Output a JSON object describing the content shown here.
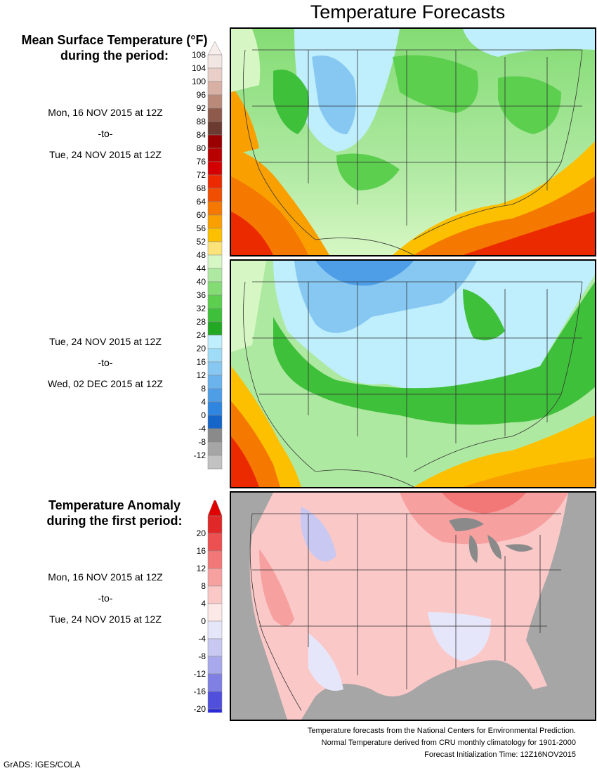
{
  "title": "Temperature Forecasts",
  "mean_section": {
    "heading_line1": "Mean Surface Temperature (°F)",
    "heading_line2": "during the period:",
    "period1": {
      "start": "Mon, 16 NOV 2015 at 12Z",
      "sep": "-to-",
      "end": "Tue, 24 NOV 2015 at 12Z"
    },
    "period2": {
      "start": "Tue, 24 NOV 2015 at 12Z",
      "sep": "-to-",
      "end": "Wed, 02 DEC 2015 at 12Z"
    },
    "colorbar": {
      "ticks": [
        "108",
        "104",
        "100",
        "96",
        "92",
        "88",
        "84",
        "80",
        "76",
        "72",
        "68",
        "64",
        "60",
        "56",
        "52",
        "48",
        "44",
        "40",
        "36",
        "32",
        "28",
        "24",
        "20",
        "16",
        "12",
        "8",
        "4",
        "0",
        "-4",
        "-8",
        "-12"
      ],
      "colors": [
        "#e9cfc8",
        "#d9b0a4",
        "#b98a7a",
        "#8d5a4c",
        "#6b3a30",
        "#9a0000",
        "#b80000",
        "#d40000",
        "#ec2a00",
        "#f04e00",
        "#f57800",
        "#f9a000",
        "#fcc000",
        "#fbe37a",
        "#d6f7c3",
        "#aee9a1",
        "#84dc74",
        "#5ccf4f",
        "#3fc03a",
        "#23a823",
        "#bfeefc",
        "#9fdcf7",
        "#86c8f2",
        "#6ab3ec",
        "#4e9de7",
        "#2f86e0",
        "#1566c8",
        "#8a8a8a",
        "#a6a6a6",
        "#c2c2c2",
        "#dddddd"
      ]
    }
  },
  "anomaly_section": {
    "heading_line1": "Temperature Anomaly",
    "heading_line2": "during the first period:",
    "period": {
      "start": "Mon, 16 NOV 2015 at 12Z",
      "sep": "-to-",
      "end": "Tue, 24 NOV 2015 at 12Z"
    },
    "colorbar": {
      "ticks": [
        "20",
        "16",
        "12",
        "8",
        "4",
        "0",
        "-4",
        "-8",
        "-12",
        "-16",
        "-20"
      ],
      "colors": [
        "#e02828",
        "#ec5050",
        "#f27878",
        "#f7a0a0",
        "#fbc8c8",
        "#fde8e8",
        "#e6e6fa",
        "#c8c8f2",
        "#a8a8ec",
        "#8080e4",
        "#5050dc",
        "#2a2ad8"
      ]
    }
  },
  "maps": {
    "panel1_name": "forecast-week1-map",
    "panel2_name": "forecast-week2-map",
    "panel3_name": "anomaly-map"
  },
  "footer": {
    "line1": "Temperature forecasts from the National Centers for Environmental Prediction.",
    "line2": "Normal Temperature derived from CRU monthly climatology for 1901-2000",
    "line3": "Forecast Initialization Time: 12Z16NOV2015"
  },
  "credit": "GrADS: IGES/COLA"
}
